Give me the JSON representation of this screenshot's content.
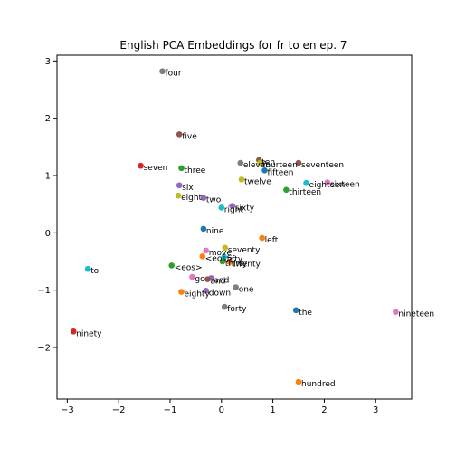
{
  "chart_data": {
    "type": "scatter",
    "title": "English PCA Embeddings for fr to en ep. 7",
    "xlabel": "",
    "ylabel": "",
    "xlim": [
      -3.2,
      3.7
    ],
    "ylim": [
      -2.9,
      3.1
    ],
    "xticks": [
      -3,
      -2,
      -1,
      0,
      1,
      2,
      3
    ],
    "yticks": [
      -2,
      -1,
      0,
      1,
      2,
      3
    ],
    "grid": false,
    "points": [
      {
        "label": "four",
        "x": -1.15,
        "y": 2.82,
        "color": "#7f7f7f"
      },
      {
        "label": "five",
        "x": -0.82,
        "y": 1.72,
        "color": "#8c564b"
      },
      {
        "label": "seven",
        "x": -1.57,
        "y": 1.17,
        "color": "#d62728"
      },
      {
        "label": "three",
        "x": -0.78,
        "y": 1.13,
        "color": "#2ca02c"
      },
      {
        "label": "six",
        "x": -0.82,
        "y": 0.83,
        "color": "#9467bd"
      },
      {
        "label": "eight",
        "x": -0.84,
        "y": 0.65,
        "color": "#bcbd22"
      },
      {
        "label": "two",
        "x": -0.35,
        "y": 0.61,
        "color": "#9467bd"
      },
      {
        "label": "eleven",
        "x": 0.37,
        "y": 1.22,
        "color": "#7f7f7f"
      },
      {
        "label": "ten",
        "x": 0.73,
        "y": 1.27,
        "color": "#8c564b"
      },
      {
        "label": "fourteen",
        "x": 0.75,
        "y": 1.22,
        "color": "#bcbd22"
      },
      {
        "label": "fifteen",
        "x": 0.84,
        "y": 1.09,
        "color": "#1f77b4"
      },
      {
        "label": "seventeen",
        "x": 1.5,
        "y": 1.22,
        "color": "#8c564b"
      },
      {
        "label": "twelve",
        "x": 0.39,
        "y": 0.93,
        "color": "#bcbd22"
      },
      {
        "label": "eighteen",
        "x": 1.65,
        "y": 0.87,
        "color": "#17becf"
      },
      {
        "label": "sixteen",
        "x": 2.06,
        "y": 0.88,
        "color": "#e377c2"
      },
      {
        "label": "thirteen",
        "x": 1.26,
        "y": 0.75,
        "color": "#2ca02c"
      },
      {
        "label": "sixty",
        "x": 0.21,
        "y": 0.47,
        "color": "#9467bd"
      },
      {
        "label": "right",
        "x": 0.0,
        "y": 0.44,
        "color": "#17becf"
      },
      {
        "label": "nine",
        "x": -0.35,
        "y": 0.07,
        "color": "#1f77b4"
      },
      {
        "label": "left",
        "x": 0.79,
        "y": -0.09,
        "color": "#ff7f0e"
      },
      {
        "label": "seventy",
        "x": 0.07,
        "y": -0.26,
        "color": "#bcbd22"
      },
      {
        "label": "move",
        "x": -0.3,
        "y": -0.31,
        "color": "#e377c2"
      },
      {
        "label": "<eos>",
        "x": -0.37,
        "y": -0.41,
        "color": "#ff7f0e"
      },
      {
        "label": "fifty",
        "x": 0.05,
        "y": -0.42,
        "color": "#17becf"
      },
      {
        "label": "thirty",
        "x": 0.02,
        "y": -0.5,
        "color": "#2ca02c"
      },
      {
        "label": "twenty",
        "x": 0.16,
        "y": -0.51,
        "color": "#ff7f0e"
      },
      {
        "label": "<eos>",
        "x": -0.97,
        "y": -0.57,
        "color": "#2ca02c"
      },
      {
        "label": "to",
        "x": -2.6,
        "y": -0.63,
        "color": "#17becf"
      },
      {
        "label": "go",
        "x": -0.57,
        "y": -0.77,
        "color": "#e377c2"
      },
      {
        "label": "and",
        "x": -0.2,
        "y": -0.79,
        "color": "#9467bd"
      },
      {
        "label": "and",
        "x": -0.27,
        "y": -0.81,
        "color": "#8c564b"
      },
      {
        "label": "eighty",
        "x": -0.78,
        "y": -1.03,
        "color": "#ff7f0e"
      },
      {
        "label": "down",
        "x": -0.3,
        "y": -1.01,
        "color": "#9467bd"
      },
      {
        "label": "one",
        "x": 0.28,
        "y": -0.95,
        "color": "#7f7f7f"
      },
      {
        "label": "forty",
        "x": 0.06,
        "y": -1.29,
        "color": "#7f7f7f"
      },
      {
        "label": "the",
        "x": 1.45,
        "y": -1.35,
        "color": "#1f77b4"
      },
      {
        "label": "nineteen",
        "x": 3.39,
        "y": -1.38,
        "color": "#e377c2"
      },
      {
        "label": "ninety",
        "x": -2.88,
        "y": -1.72,
        "color": "#d62728"
      },
      {
        "label": "hundred",
        "x": 1.5,
        "y": -2.6,
        "color": "#ff7f0e"
      }
    ]
  }
}
